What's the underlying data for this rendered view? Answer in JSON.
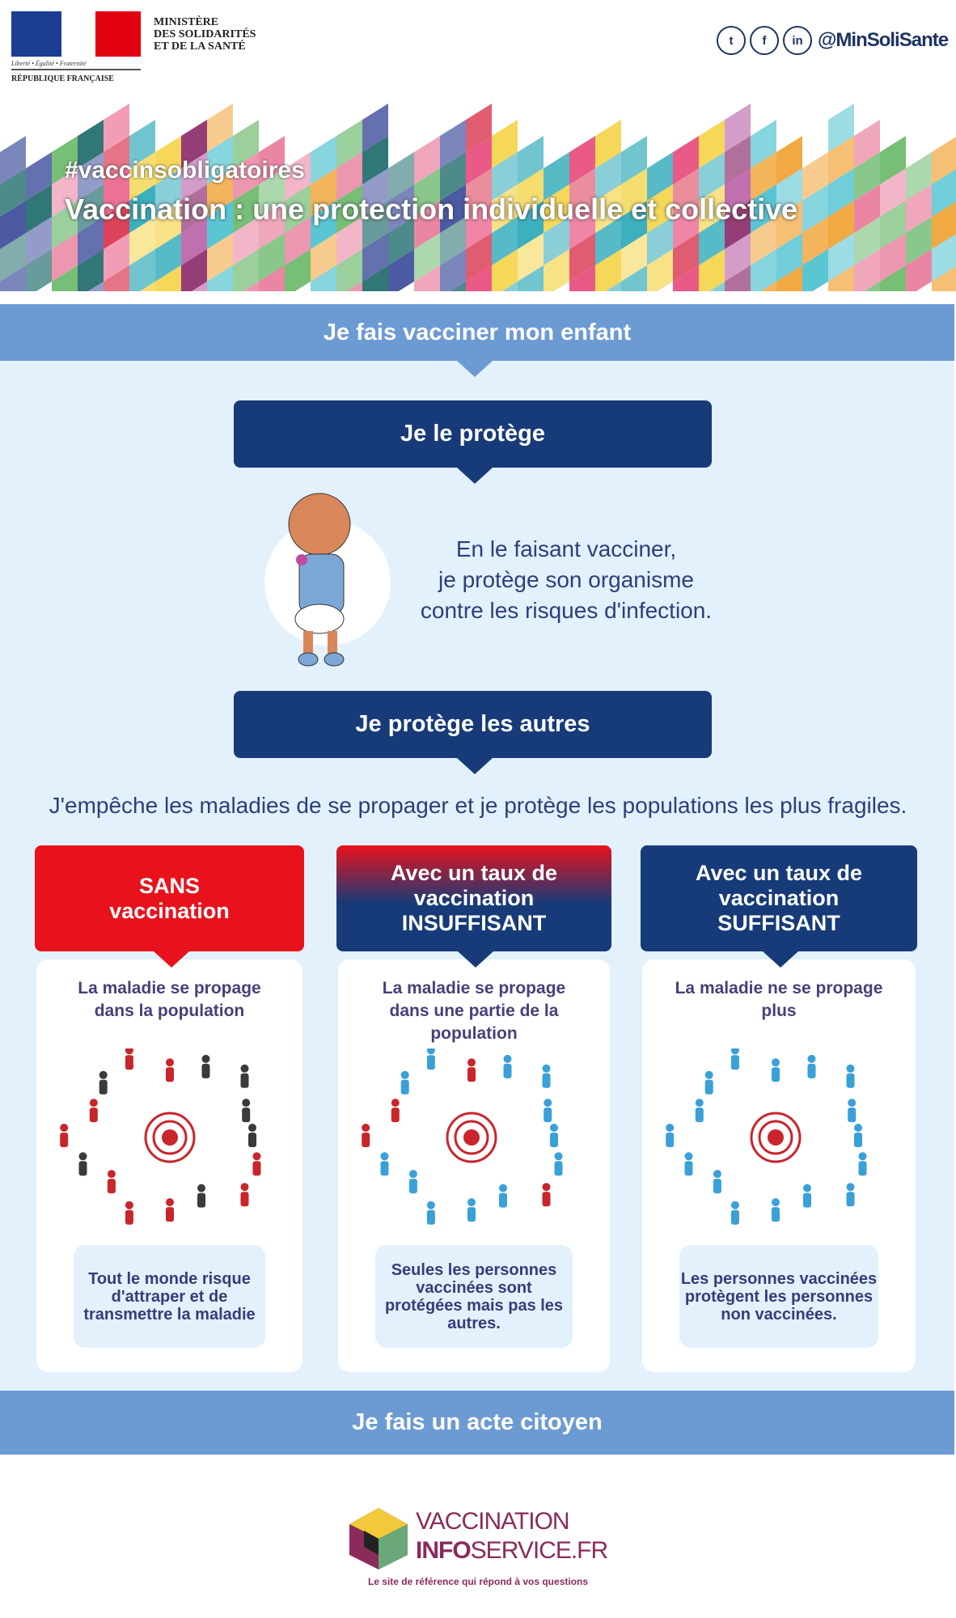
{
  "header": {
    "ministry_lines": [
      "MINISTÈRE",
      "DES SOLIDARITÉS",
      "ET DE LA SANTÉ"
    ],
    "motto": "Liberté • Égalité • Fraternité",
    "republic": "RÉPUBLIQUE FRANÇAISE",
    "social": [
      {
        "icon": "twitter-icon",
        "glyph": "t"
      },
      {
        "icon": "facebook-icon",
        "glyph": "f"
      },
      {
        "icon": "linkedin-icon",
        "glyph": "in"
      }
    ],
    "handle": "@MinSoliSante"
  },
  "banner": {
    "hashtag": "#vaccinsobligatoires",
    "title": "Vaccination : une protection individuelle et collective"
  },
  "colors": {
    "light_blue": "#6c9bd3",
    "navy": "#173b78",
    "red": "#e8121c",
    "panel": "#e2f1fc",
    "text": "#2c3f7a"
  },
  "section1": {
    "bar": "Je fais vacciner mon enfant",
    "protect_self": "Je le protège",
    "intro_lines": [
      "En le faisant vacciner,",
      "je protège son organisme",
      "contre les risques d'infection."
    ],
    "protect_others": "Je protège les autres",
    "sentence": "J'empêche les maladies de se propager et je protège les populations les plus fragiles."
  },
  "cards": [
    {
      "header": "SANS vaccination",
      "subtitle": "La maladie se propage dans la population",
      "note": "Tout le monde risque d'attraper et de transmettre la maladie",
      "people": [
        "dark",
        "red",
        "red",
        "dark",
        "red",
        "red",
        "red",
        "dark",
        "red",
        "red",
        "dark",
        "red",
        "red",
        "dark",
        "dark",
        "dark"
      ]
    },
    {
      "header": "Avec un taux de vaccination INSUFFISANT",
      "subtitle": "La maladie se propage dans une partie de la population",
      "note": "Seules les personnes vaccinées sont protégées mais pas les autres.",
      "people": [
        "blue",
        "blue",
        "red",
        "blue",
        "blue",
        "blue",
        "blue",
        "blue",
        "red",
        "red",
        "blue",
        "blue",
        "red",
        "blue",
        "blue",
        "blue"
      ]
    },
    {
      "header": "Avec un taux de vaccination SUFFISANT",
      "subtitle": "La maladie ne se propage plus",
      "note": "Les personnes vaccinées protègent les personnes non vaccinées.",
      "people": [
        "blue",
        "blue",
        "blue",
        "blue",
        "blue",
        "blue",
        "blue",
        "blue",
        "blue",
        "blue",
        "blue",
        "blue",
        "blue",
        "blue",
        "blue",
        "blue"
      ]
    }
  ],
  "section2": {
    "bar": "Je fais un acte citoyen"
  },
  "footer": {
    "logo_line1": "VACCINATION",
    "logo_line2a": "INFO",
    "logo_line2b": "SERVICE.FR",
    "tagline": "Le site de référence qui répond à vos questions"
  }
}
